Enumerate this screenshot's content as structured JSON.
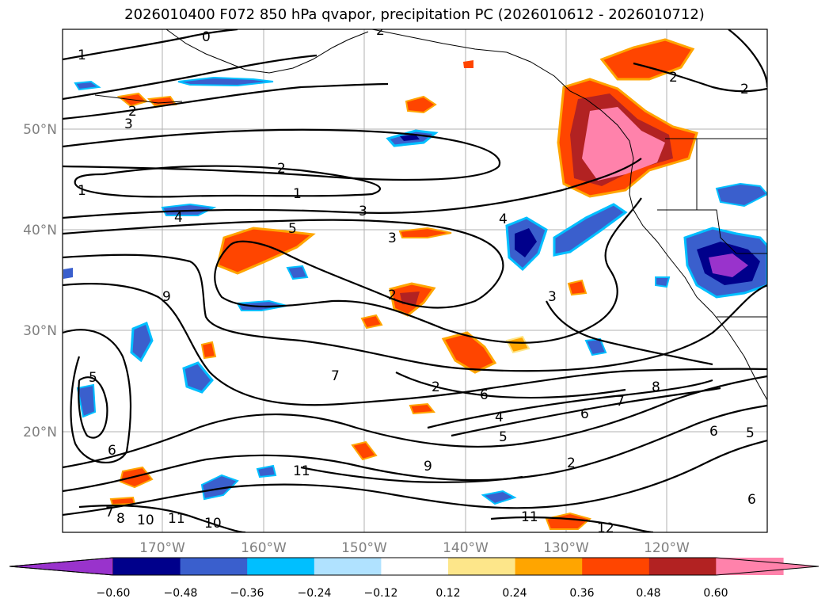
{
  "title": "2026010400 F072 850 hPa qvapor, precipitation PC (2026010612 - 2026010712)",
  "map": {
    "lat_labels": [
      "50°N",
      "40°N",
      "30°N",
      "20°N"
    ],
    "lon_labels": [
      "170°W",
      "160°W",
      "150°W",
      "140°W",
      "130°W",
      "120°W"
    ],
    "contour_labels": [
      "0",
      "1",
      "2",
      "2",
      "3",
      "2",
      "1",
      "2",
      "1",
      "3",
      "4",
      "5",
      "3",
      "4",
      "9",
      "2",
      "3",
      "2",
      "5",
      "7",
      "6",
      "4",
      "5",
      "6",
      "7",
      "8",
      "6",
      "5",
      "6",
      "9",
      "11",
      "7",
      "8",
      "10",
      "11",
      "10",
      "11",
      "12",
      "2",
      "2",
      "6"
    ]
  },
  "colorbar": {
    "ticks": [
      "−0.60",
      "−0.48",
      "−0.36",
      "−0.24",
      "−0.12",
      "0.12",
      "0.24",
      "0.36",
      "0.48",
      "0.60"
    ],
    "colors": [
      "#9933cc",
      "#00008b",
      "#3a5fcd",
      "#00bfff",
      "#b0e2ff",
      "#ffffff",
      "#fde68a",
      "#ffa500",
      "#ff4500",
      "#b22222",
      "#ff82ab",
      "#ff82ab"
    ]
  }
}
